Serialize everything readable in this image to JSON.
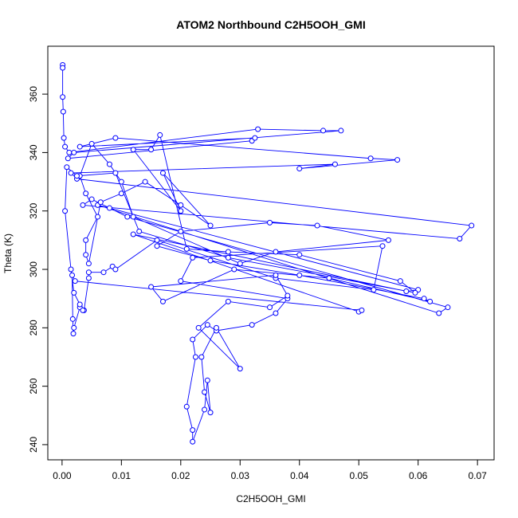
{
  "chart_data": {
    "type": "line",
    "title": "ATOM2 Northbound C2H5OOH_GMI",
    "x_label": "C2H5OOH_GMI",
    "y_label": "Theta (K)",
    "color": "#0000ff",
    "markers": true,
    "xlim": [
      -0.0024,
      0.0728
    ],
    "ylim": [
      234.8,
      376.4
    ],
    "xticks": [
      {
        "value": 0,
        "label": "0.00"
      },
      {
        "value": 0.01,
        "label": "0.01"
      },
      {
        "value": 0.02,
        "label": "0.02"
      },
      {
        "value": 0.03,
        "label": "0.03"
      },
      {
        "value": 0.04,
        "label": "0.04"
      },
      {
        "value": 0.05,
        "label": "0.05"
      },
      {
        "value": 0.06,
        "label": "0.06"
      },
      {
        "value": 0.07,
        "label": "0.07"
      }
    ],
    "yticks": [
      240,
      260,
      280,
      300,
      320,
      340,
      360
    ],
    "x": [
      0.0001,
      0.0001,
      0.0001,
      0.0002,
      0.0003,
      0.0005,
      0.0012,
      0.033,
      0.044,
      0.047,
      0.002,
      0.001,
      0.032,
      0.0325,
      0.003,
      0.009,
      0.052,
      0.0565,
      0.04,
      0.046,
      0.0015,
      0.0025,
      0.069,
      0.067,
      0.0035,
      0.005,
      0.011,
      0.065,
      0.0635,
      0.006,
      0.008,
      0.06,
      0.058,
      0.012,
      0.05,
      0.0505,
      0.0022,
      0.0017,
      0.0018,
      0.0019,
      0.002,
      0.003,
      0.0037,
      0.0045,
      0.0045,
      0.007,
      0.0085,
      0.009,
      0.016,
      0.036,
      0.0525,
      0.054,
      0.022,
      0.02,
      0.038,
      0.036,
      0.032,
      0.026,
      0.0245,
      0.022,
      0.0225,
      0.021,
      0.022,
      0.022,
      0.024,
      0.0245,
      0.025,
      0.024,
      0.0235,
      0.026,
      0.03,
      0.023,
      0.028,
      0.035,
      0.038,
      0.036,
      0.015,
      0.017,
      0.029,
      0.045,
      0.062,
      0.061,
      0.04,
      0.025,
      0.016,
      0.02,
      0.035,
      0.043,
      0.055,
      0.036,
      0.03,
      0.012,
      0.01,
      0.008,
      0.005,
      0.003,
      0.004,
      0.006,
      0.004,
      0.004,
      0.0045,
      0.0065,
      0.01,
      0.014,
      0.02,
      0.025,
      0.017,
      0.02,
      0.012,
      0.015,
      0.0165,
      0.021,
      0.028,
      0.04,
      0.057,
      0.0595,
      0.028,
      0.013,
      0.009,
      0.0025,
      0.0008,
      0.0005,
      0.0015,
      0.002,
      0.003,
      0.0035
    ],
    "values": [
      370,
      369,
      359,
      354,
      345,
      342,
      340,
      348,
      347.5,
      347.5,
      340,
      338,
      344,
      345,
      342,
      345,
      338,
      337.5,
      334.5,
      336,
      333,
      331,
      315,
      310.5,
      322,
      324,
      318,
      287,
      285,
      322,
      321,
      293,
      292.5,
      312,
      285.5,
      286,
      296,
      298,
      283,
      278,
      280,
      287,
      286,
      297,
      299,
      299,
      301,
      300,
      310,
      297,
      293,
      308,
      304,
      296,
      290,
      285,
      281,
      279,
      281,
      276,
      270,
      253,
      245,
      241,
      252,
      262,
      251,
      258,
      270,
      280,
      266,
      280,
      289,
      287,
      291,
      298,
      294,
      289,
      300,
      297,
      289,
      290,
      298,
      303,
      308,
      313,
      316,
      315,
      310,
      306,
      302,
      318,
      330,
      336,
      343,
      332,
      326,
      318,
      310,
      305,
      302,
      323,
      326,
      330,
      322,
      315,
      333,
      320,
      341,
      341,
      346,
      307,
      306,
      305,
      296,
      292,
      304,
      313,
      333,
      332,
      335,
      320,
      300,
      292,
      288,
      286
    ]
  }
}
